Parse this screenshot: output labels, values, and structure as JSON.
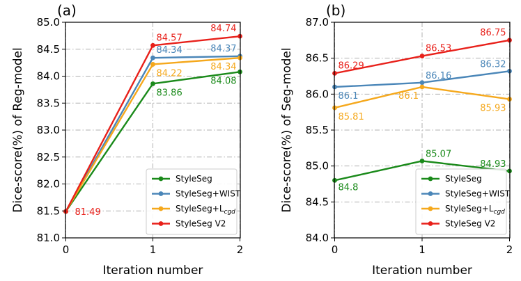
{
  "chart_data": [
    {
      "type": "line",
      "panel_label": "(a)",
      "xlabel": "Iteration number",
      "ylabel": "Dice-score(%) of Reg-model",
      "x": [
        0,
        1,
        2
      ],
      "xticks": [
        "0",
        "1",
        "2"
      ],
      "ylim": [
        81.0,
        85.0
      ],
      "yticks": [
        "81.0",
        "81.5",
        "82.0",
        "82.5",
        "83.0",
        "83.5",
        "84.0",
        "84.5",
        "85.0"
      ],
      "grid": true,
      "legend_position": "bottom-right",
      "series": [
        {
          "name": "StyleSeg",
          "legend": [
            "StyleSeg",
            ""
          ],
          "color": "#1a8a1a",
          "values": [
            81.49,
            83.86,
            84.08
          ],
          "labels": [
            "",
            "83.86",
            "84.08"
          ]
        },
        {
          "name": "StyleSeg+WIST",
          "legend": [
            "StyleSeg+WIST",
            ""
          ],
          "color": "#4a86b8",
          "values": [
            81.49,
            84.34,
            84.37
          ],
          "labels": [
            "",
            "84.34",
            "84.37"
          ]
        },
        {
          "name": "StyleSeg+Lcgd",
          "legend": [
            "StyleSeg+L",
            "cgd"
          ],
          "color": "#f5a81c",
          "values": [
            81.49,
            84.22,
            84.34
          ],
          "labels": [
            "",
            "84.22",
            "84.34"
          ]
        },
        {
          "name": "StyleSeg V2",
          "legend": [
            "StyleSeg V2",
            ""
          ],
          "color": "#e8201a",
          "values": [
            81.49,
            84.57,
            84.74
          ],
          "labels": [
            "81.49",
            "84.57",
            "84.74"
          ]
        }
      ]
    },
    {
      "type": "line",
      "panel_label": "(b)",
      "xlabel": "Iteration number",
      "ylabel": "Dice-score(%) of Seg-model",
      "x": [
        0,
        1,
        2
      ],
      "xticks": [
        "0",
        "1",
        "2"
      ],
      "ylim": [
        84.0,
        87.0
      ],
      "yticks": [
        "84.0",
        "84.5",
        "85.0",
        "85.5",
        "86.0",
        "86.5",
        "87.0"
      ],
      "grid": true,
      "legend_position": "bottom-right",
      "series": [
        {
          "name": "StyleSeg",
          "legend": [
            "StyleSeg",
            ""
          ],
          "color": "#1a8a1a",
          "values": [
            84.8,
            85.07,
            84.93
          ],
          "labels": [
            "84.8",
            "85.07",
            "84.93"
          ]
        },
        {
          "name": "StyleSeg+WIST",
          "legend": [
            "StyleSeg+WIST",
            ""
          ],
          "color": "#4a86b8",
          "values": [
            86.1,
            86.16,
            86.32
          ],
          "labels": [
            "86.1",
            "86.16",
            "86.32"
          ]
        },
        {
          "name": "StyleSeg+Lcgd",
          "legend": [
            "StyleSeg+L",
            "cgd"
          ],
          "color": "#f5a81c",
          "values": [
            85.81,
            86.1,
            85.93
          ],
          "labels": [
            "85.81",
            "86.1",
            "85.93"
          ]
        },
        {
          "name": "StyleSeg V2",
          "legend": [
            "StyleSeg V2",
            ""
          ],
          "color": "#e8201a",
          "values": [
            86.29,
            86.53,
            86.75
          ],
          "labels": [
            "86.29",
            "86.53",
            "86.75"
          ]
        }
      ]
    }
  ]
}
